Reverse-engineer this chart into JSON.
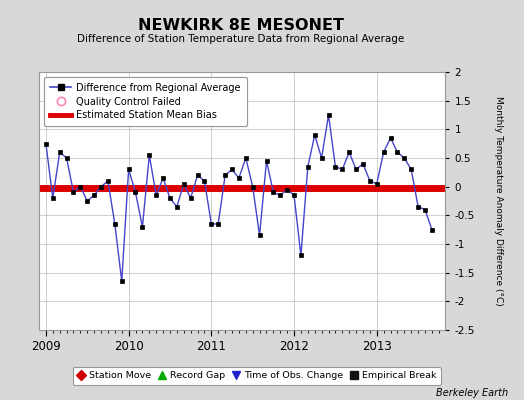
{
  "title": "NEWKIRK 8E MESONET",
  "subtitle": "Difference of Station Temperature Data from Regional Average",
  "ylabel": "Monthly Temperature Anomaly Difference (°C)",
  "bias": -0.03,
  "background_color": "#d8d8d8",
  "plot_bg_color": "#ffffff",
  "line_color": "#4444cc",
  "bias_color": "#dd0000",
  "marker_color": "#000000",
  "ylim": [
    -2.5,
    2.0
  ],
  "ytick_vals": [
    -2.5,
    -2.0,
    -1.5,
    -1.0,
    -0.5,
    0.0,
    0.5,
    1.0,
    1.5,
    2.0
  ],
  "ytick_labels": [
    "-2.5",
    "-2",
    "-1.5",
    "-1",
    "-0.5",
    "0",
    "0.5",
    "1",
    "1.5",
    "2"
  ],
  "xlim_start": 2008.92,
  "xlim_end": 2013.83,
  "x_ticks": [
    2009,
    2010,
    2011,
    2012,
    2013
  ],
  "months": [
    2009.0,
    2009.083,
    2009.167,
    2009.25,
    2009.333,
    2009.417,
    2009.5,
    2009.583,
    2009.667,
    2009.75,
    2009.833,
    2009.917,
    2010.0,
    2010.083,
    2010.167,
    2010.25,
    2010.333,
    2010.417,
    2010.5,
    2010.583,
    2010.667,
    2010.75,
    2010.833,
    2010.917,
    2011.0,
    2011.083,
    2011.167,
    2011.25,
    2011.333,
    2011.417,
    2011.5,
    2011.583,
    2011.667,
    2011.75,
    2011.833,
    2011.917,
    2012.0,
    2012.083,
    2012.167,
    2012.25,
    2012.333,
    2012.417,
    2012.5,
    2012.583,
    2012.667,
    2012.75,
    2012.833,
    2012.917,
    2013.0,
    2013.083,
    2013.167,
    2013.25,
    2013.333,
    2013.417,
    2013.5,
    2013.583,
    2013.667
  ],
  "values": [
    0.75,
    -0.2,
    0.6,
    0.5,
    -0.1,
    0.0,
    -0.25,
    -0.15,
    0.0,
    0.1,
    -0.65,
    -1.65,
    0.3,
    -0.1,
    -0.7,
    0.55,
    -0.15,
    0.15,
    -0.2,
    -0.35,
    0.05,
    -0.2,
    0.2,
    0.1,
    -0.65,
    -0.65,
    0.2,
    0.3,
    0.15,
    0.5,
    0.0,
    -0.85,
    0.45,
    -0.1,
    -0.15,
    -0.05,
    -0.15,
    -1.2,
    0.35,
    0.9,
    0.5,
    1.25,
    0.35,
    0.3,
    0.6,
    0.3,
    0.4,
    0.1,
    0.05,
    0.6,
    0.85,
    0.6,
    0.5,
    0.3,
    -0.35,
    -0.4,
    -0.75
  ],
  "legend1_label_line": "Difference from Regional Average",
  "legend1_label_qc": "Quality Control Failed",
  "legend1_label_bias": "Estimated Station Mean Bias",
  "legend2_items": [
    {
      "label": "Station Move",
      "color": "#cc0000",
      "marker": "D"
    },
    {
      "label": "Record Gap",
      "color": "#00aa00",
      "marker": "^"
    },
    {
      "label": "Time of Obs. Change",
      "color": "#2222cc",
      "marker": "v"
    },
    {
      "label": "Empirical Break",
      "color": "#111111",
      "marker": "s"
    }
  ],
  "berkeley_earth_text": "Berkeley Earth",
  "grid_color": "#bbbbbb",
  "grid_alpha": 0.7
}
